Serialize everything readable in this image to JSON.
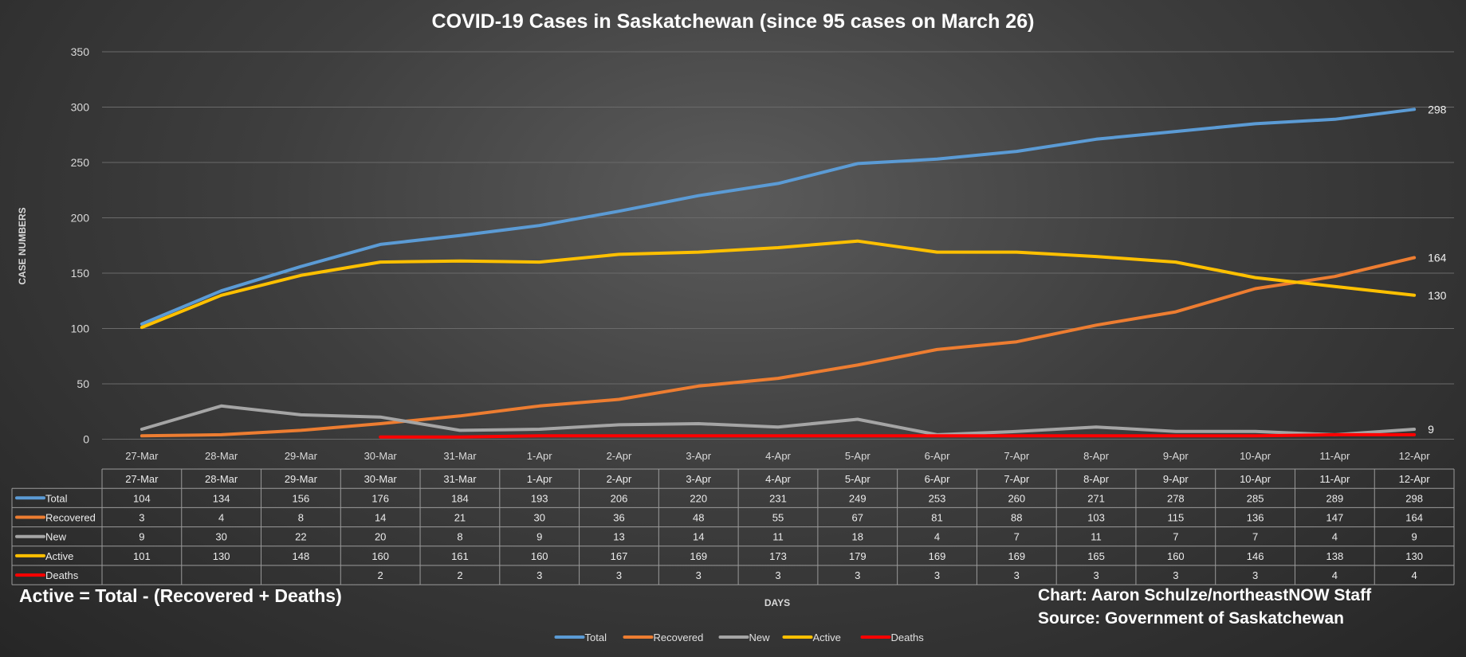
{
  "chart_data": {
    "type": "line",
    "title": "COVID-19 Cases in Saskatchewan (since 95 cases on March 26)",
    "xlabel": "DAYS",
    "ylabel": "CASE NUMBERS",
    "ylim": [
      0,
      350
    ],
    "yticks": [
      "0",
      "50",
      "100",
      "150",
      "200",
      "250",
      "300",
      "350"
    ],
    "grid": true,
    "legend_position": "bottom",
    "categories": [
      "27-Mar",
      "28-Mar",
      "29-Mar",
      "30-Mar",
      "31-Mar",
      "1-Apr",
      "2-Apr",
      "3-Apr",
      "4-Apr",
      "5-Apr",
      "6-Apr",
      "7-Apr",
      "8-Apr",
      "9-Apr",
      "10-Apr",
      "11-Apr",
      "12-Apr"
    ],
    "series": [
      {
        "name": "Total",
        "color": "#5b9bd5",
        "values": [
          104,
          134,
          156,
          176,
          184,
          193,
          206,
          220,
          231,
          249,
          253,
          260,
          271,
          278,
          285,
          289,
          298
        ],
        "end_label": "298"
      },
      {
        "name": "Recovered",
        "color": "#ed7d31",
        "values": [
          3,
          4,
          8,
          14,
          21,
          30,
          36,
          48,
          55,
          67,
          81,
          88,
          103,
          115,
          136,
          147,
          164
        ],
        "end_label": "164"
      },
      {
        "name": "New",
        "color": "#a5a5a5",
        "values": [
          9,
          30,
          22,
          20,
          8,
          9,
          13,
          14,
          11,
          18,
          4,
          7,
          11,
          7,
          7,
          4,
          9
        ],
        "end_label": "9"
      },
      {
        "name": "Active",
        "color": "#ffc000",
        "values": [
          101,
          130,
          148,
          160,
          161,
          160,
          167,
          169,
          173,
          179,
          169,
          169,
          165,
          160,
          146,
          138,
          130
        ],
        "end_label": "130"
      },
      {
        "name": "Deaths",
        "color": "#ff0000",
        "values": [
          null,
          null,
          null,
          2,
          2,
          3,
          3,
          3,
          3,
          3,
          3,
          3,
          3,
          3,
          3,
          4,
          4
        ],
        "end_label": null
      }
    ],
    "annotations": {
      "formula": "Active = Total - (Recovered + Deaths)",
      "credit": "Chart: Aaron Schulze/northeastNOW Staff",
      "source": "Source: Government of Saskatchewan"
    }
  }
}
